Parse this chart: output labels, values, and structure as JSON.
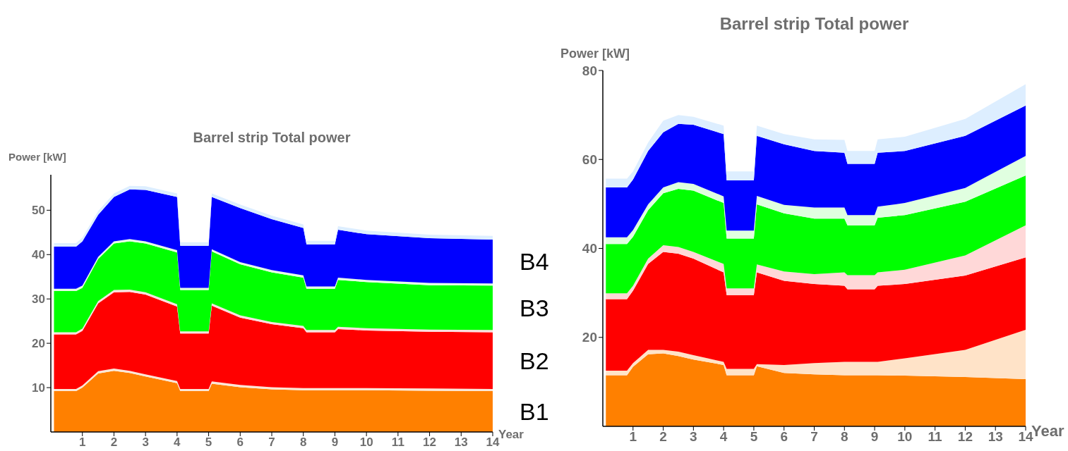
{
  "chart_data": [
    {
      "type": "area",
      "stacked": true,
      "title": "Barrel strip Total power",
      "xlabel": "Year",
      "ylabel": "Power [kW]",
      "x": [
        0.1,
        0.8,
        1,
        1.5,
        2,
        2.5,
        3,
        4,
        4.1,
        5,
        5.1,
        6,
        7,
        8,
        8.1,
        9,
        9.1,
        10,
        12,
        14
      ],
      "xlim": [
        0,
        14
      ],
      "xticks": [
        1,
        2,
        3,
        4,
        5,
        6,
        7,
        8,
        9,
        10,
        11,
        12,
        13,
        14
      ],
      "ylim": [
        0,
        58
      ],
      "yticks": [
        10,
        20,
        30,
        40,
        50
      ],
      "series": [
        {
          "name": "B1",
          "color": "#ff8000",
          "values": [
            9.2,
            9.2,
            10,
            13.2,
            13.8,
            13.3,
            12.5,
            11,
            9.2,
            9.2,
            10.9,
            10.1,
            9.6,
            9.4,
            9.4,
            9.4,
            9.4,
            9.4,
            9.3,
            9.2
          ]
        },
        {
          "color": "#fbe6d6",
          "values": [
            0.5,
            0.5,
            0.5,
            0.5,
            0.5,
            0.5,
            0.5,
            0.5,
            0.5,
            0.5,
            0.5,
            0.5,
            0.5,
            0.5,
            0.5,
            0.5,
            0.5,
            0.5,
            0.5,
            0.5
          ]
        },
        {
          "name": "B2",
          "color": "#ff0000",
          "values": [
            12.3,
            12.3,
            12.3,
            15.3,
            17.2,
            17.8,
            18,
            16.8,
            12.5,
            12.5,
            17.1,
            15.2,
            14.2,
            13.5,
            12.6,
            12.6,
            13.3,
            13.0,
            12.8,
            12.8
          ]
        },
        {
          "color": "#fbe0e0",
          "values": [
            0.5,
            0.5,
            0.5,
            0.5,
            0.5,
            0.5,
            0.5,
            0.5,
            0.5,
            0.5,
            0.5,
            0.5,
            0.5,
            0.5,
            0.5,
            0.5,
            0.5,
            0.5,
            0.5,
            0.5
          ]
        },
        {
          "name": "B3",
          "color": "#00ff00",
          "values": [
            9.3,
            9.3,
            9.2,
            9.5,
            10.5,
            10.9,
            11,
            11.7,
            9.3,
            9.3,
            11.7,
            11.5,
            11.2,
            10.9,
            9.3,
            9.3,
            10.6,
            10.4,
            10.0,
            10.0
          ]
        },
        {
          "color": "#e4fbe4",
          "values": [
            0.5,
            0.5,
            0.5,
            0.5,
            0.5,
            0.5,
            0.5,
            0.5,
            0.5,
            0.5,
            0.5,
            0.5,
            0.5,
            0.5,
            0.5,
            0.5,
            0.5,
            0.5,
            0.5,
            0.5
          ]
        },
        {
          "name": "B4",
          "color": "#0000ff",
          "values": [
            9.5,
            9.5,
            10,
            9.5,
            10,
            11.2,
            11.6,
            12,
            9.5,
            9.5,
            11.8,
            12.2,
            11.5,
            10.7,
            9.5,
            9.5,
            10.8,
            10.3,
            10.1,
            9.9
          ]
        },
        {
          "color": "#ddeeff",
          "values": [
            0.8,
            0.8,
            0.8,
            0.8,
            0.8,
            0.8,
            0.8,
            0.8,
            0.8,
            0.8,
            0.8,
            0.8,
            0.8,
            0.8,
            0.8,
            0.8,
            0.8,
            0.8,
            0.8,
            0.8
          ]
        }
      ]
    },
    {
      "type": "area",
      "stacked": true,
      "title": "Barrel strip Total power",
      "xlabel": "Year",
      "ylabel": "Power [kW]",
      "x": [
        0.1,
        0.8,
        1,
        1.5,
        2,
        2.5,
        3,
        4,
        4.1,
        5,
        5.1,
        6,
        7,
        8,
        8.1,
        9,
        9.1,
        10,
        12,
        14
      ],
      "xlim": [
        0,
        14
      ],
      "xticks": [
        1,
        2,
        3,
        4,
        5,
        6,
        7,
        8,
        9,
        10,
        11,
        12,
        13,
        14
      ],
      "ylim": [
        0,
        80
      ],
      "yticks": [
        20,
        40,
        60,
        80
      ],
      "series": [
        {
          "color": "#ff8000",
          "values": [
            11.5,
            11.5,
            13.4,
            16.2,
            16.4,
            15.8,
            15.0,
            13.8,
            11.5,
            11.5,
            13.5,
            12.0,
            11.7,
            11.5,
            11.5,
            11.5,
            11.5,
            11.4,
            11.1,
            10.6
          ]
        },
        {
          "color": "#ffe3c8",
          "values": [
            1.0,
            1.0,
            0.8,
            1.0,
            0.8,
            1.0,
            1.0,
            0.7,
            1.4,
            1.4,
            0.5,
            1.8,
            2.5,
            3.0,
            3.0,
            3.0,
            3.0,
            3.9,
            6.1,
            11.1
          ]
        },
        {
          "color": "#ff0000",
          "values": [
            16.1,
            16.1,
            16.3,
            19.3,
            22.0,
            22.0,
            21.7,
            20.1,
            16.6,
            16.6,
            20.6,
            18.9,
            17.8,
            17.1,
            16.3,
            16.3,
            17.1,
            16.7,
            16.7,
            16.3
          ]
        },
        {
          "color": "#ffd8d8",
          "values": [
            1.3,
            1.3,
            1.1,
            1.2,
            1.5,
            1.5,
            1.5,
            1.9,
            1.5,
            1.5,
            1.8,
            2.1,
            2.2,
            3.0,
            3.2,
            3.2,
            3.0,
            3.2,
            4.5,
            7.2
          ]
        },
        {
          "color": "#00ff00",
          "values": [
            11.1,
            11.1,
            11.0,
            10.9,
            11.7,
            13.1,
            13.8,
            13.7,
            11.2,
            11.2,
            13.5,
            13.1,
            12.5,
            12.1,
            11.2,
            11.2,
            12.3,
            12.3,
            12.1,
            11.2
          ]
        },
        {
          "color": "#e0ffe0",
          "values": [
            1.5,
            1.5,
            1.5,
            1.3,
            1.3,
            1.5,
            1.5,
            1.5,
            1.8,
            1.8,
            1.9,
            1.9,
            2.5,
            2.5,
            2.3,
            2.3,
            2.5,
            2.7,
            3.1,
            4.4
          ]
        },
        {
          "color": "#0000ff",
          "values": [
            11.2,
            11.2,
            11.4,
            12.0,
            12.4,
            13.1,
            13.3,
            14.0,
            11.3,
            11.3,
            13.5,
            13.6,
            12.7,
            12.3,
            11.5,
            11.5,
            12.1,
            11.7,
            11.7,
            11.3
          ]
        },
        {
          "color": "#ddeeff",
          "values": [
            2.0,
            2.0,
            1.8,
            1.9,
            2.6,
            2.0,
            1.8,
            1.9,
            2.0,
            2.0,
            2.3,
            2.3,
            2.6,
            2.9,
            2.9,
            2.9,
            3.0,
            3.2,
            3.8,
            4.8
          ]
        }
      ]
    }
  ]
}
